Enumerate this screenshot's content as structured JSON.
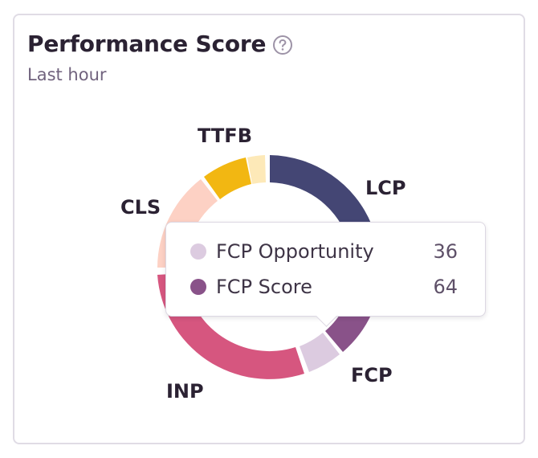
{
  "card": {
    "title": "Performance Score",
    "subtitle": "Last hour",
    "help_icon": "question-circle-icon"
  },
  "chart_data": {
    "type": "pie",
    "style": "donut",
    "segments": [
      {
        "label": "LCP",
        "color": "#444674"
      },
      {
        "label": "FCP",
        "color": "#895289"
      },
      {
        "label": "INP",
        "color": "#d6567f"
      },
      {
        "label": "CLS",
        "color": "#fdd1c4"
      },
      {
        "label": "TTFB",
        "color": "#f2b712"
      }
    ]
  },
  "tooltip": {
    "items": [
      {
        "name": "FCP Opportunity",
        "value": "36",
        "color": "#dccbe0"
      },
      {
        "name": "FCP Score",
        "value": "64",
        "color": "#895289"
      }
    ]
  }
}
